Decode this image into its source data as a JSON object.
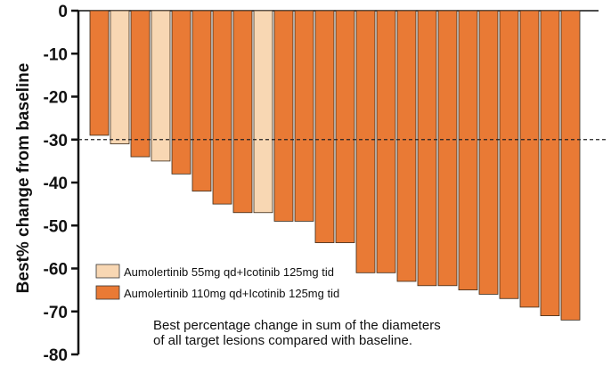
{
  "chart_data": {
    "type": "bar",
    "title": "",
    "xlabel": "",
    "ylabel": "Best% change from baseline",
    "ylim": [
      -80,
      0
    ],
    "yticks": [
      0,
      -10,
      -20,
      -30,
      -40,
      -50,
      -60,
      -70,
      -80
    ],
    "ytick_labels": [
      "0",
      "-10",
      "-20",
      "-30",
      "-40",
      "-50",
      "-60",
      "-70",
      "-80"
    ],
    "reference_line": {
      "y": -30,
      "style": "dashed"
    },
    "series": [
      {
        "name": "Aumolertinib 55mg qd+Icotinib 125mg tid",
        "color": "#f8d7b3"
      },
      {
        "name": "Aumolertinib 110mg qd+Icotinib 125mg tid",
        "color": "#e97a35"
      }
    ],
    "bars": [
      {
        "value": -29,
        "series": 1
      },
      {
        "value": -31,
        "series": 0
      },
      {
        "value": -34,
        "series": 1
      },
      {
        "value": -35,
        "series": 0
      },
      {
        "value": -38,
        "series": 1
      },
      {
        "value": -42,
        "series": 1
      },
      {
        "value": -45,
        "series": 1
      },
      {
        "value": -47,
        "series": 1
      },
      {
        "value": -47,
        "series": 0
      },
      {
        "value": -49,
        "series": 1
      },
      {
        "value": -49,
        "series": 1
      },
      {
        "value": -54,
        "series": 1
      },
      {
        "value": -54,
        "series": 1
      },
      {
        "value": -61,
        "series": 1
      },
      {
        "value": -61,
        "series": 1
      },
      {
        "value": -63,
        "series": 1
      },
      {
        "value": -64,
        "series": 1
      },
      {
        "value": -64,
        "series": 1
      },
      {
        "value": -65,
        "series": 1
      },
      {
        "value": -66,
        "series": 1
      },
      {
        "value": -67,
        "series": 1
      },
      {
        "value": -69,
        "series": 1
      },
      {
        "value": -71,
        "series": 1
      },
      {
        "value": -72,
        "series": 1
      }
    ],
    "annotation_lines": [
      "Best percentage change in sum of the diameters",
      "of all target lesions compared with baseline."
    ],
    "legend_position": "bottom-left"
  }
}
